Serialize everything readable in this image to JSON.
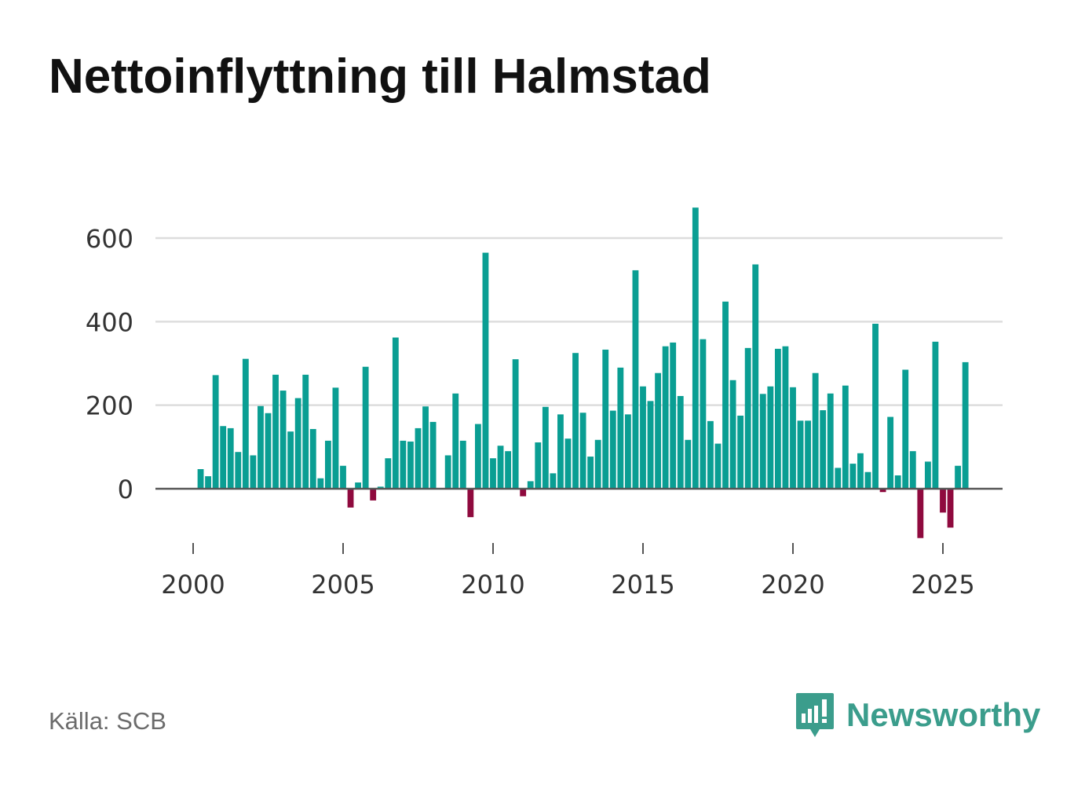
{
  "title": "Nettoinflyttning till Halmstad",
  "source": "Källa: SCB",
  "brand": {
    "name": "Newsworthy",
    "logo_icon": "bar-chart-speech-bubble-icon"
  },
  "colors": {
    "positive": "#0a9e93",
    "negative": "#8f0a3e",
    "grid": "#dddddd",
    "axis": "#555555",
    "brand": "#3b9d8c"
  },
  "chart_data": {
    "type": "bar",
    "title": "Nettoinflyttning till Halmstad",
    "xlabel": "",
    "ylabel": "",
    "ylim": [
      -120,
      680
    ],
    "xlim": [
      1999.4,
      2027.4
    ],
    "y_ticks": [
      0,
      200,
      400,
      600
    ],
    "y_tick_labels": [
      "0",
      "200",
      "400",
      "600"
    ],
    "x_ticks": [
      2000,
      2005,
      2010,
      2015,
      2020,
      2025
    ],
    "x_tick_labels": [
      "2000",
      "2005",
      "2010",
      "2015",
      "2020",
      "2025"
    ],
    "grid": true,
    "legend": "none",
    "frequency": "quarterly",
    "start": 2000.0,
    "values": [
      0,
      47,
      30,
      272,
      150,
      145,
      88,
      311,
      80,
      198,
      181,
      273,
      235,
      137,
      217,
      273,
      143,
      25,
      115,
      242,
      55,
      -45,
      15,
      292,
      -28,
      5,
      73,
      362,
      115,
      113,
      145,
      197,
      160,
      0,
      80,
      228,
      115,
      -68,
      155,
      565,
      73,
      103,
      90,
      310,
      -18,
      18,
      111,
      196,
      37,
      178,
      120,
      325,
      182,
      77,
      117,
      333,
      187,
      290,
      178,
      523,
      245,
      210,
      277,
      341,
      350,
      222,
      117,
      673,
      358,
      162,
      108,
      448,
      260,
      175,
      337,
      537,
      227,
      245,
      335,
      341,
      243,
      163,
      163,
      277,
      188,
      228,
      50,
      247,
      60,
      85,
      40,
      395,
      -8,
      172,
      32,
      285,
      90,
      -118,
      65,
      352,
      -57,
      -93,
      55,
      303
    ]
  }
}
